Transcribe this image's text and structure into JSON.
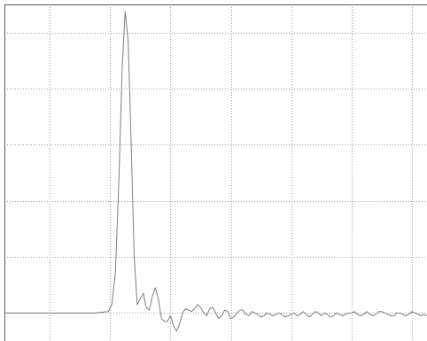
{
  "chart_data": {
    "type": "line",
    "title": "",
    "xlabel": "",
    "ylabel": "",
    "grid": true,
    "xlim": [
      0,
      7
    ],
    "ylim": [
      -0.1,
      1.1
    ],
    "x_gridlines": [
      0.75,
      1.75,
      2.75,
      3.75,
      4.75,
      5.75,
      6.75
    ],
    "y_gridlines": [
      0.0,
      0.2,
      0.4,
      0.6,
      0.8,
      1.0
    ],
    "series": [
      {
        "line_color": "#7f7f7f",
        "x": [
          0,
          0.5,
          1.0,
          1.5,
          1.72,
          1.78,
          1.84,
          1.9,
          1.95,
          2.0,
          2.05,
          2.1,
          2.15,
          2.2,
          2.25,
          2.3,
          2.35,
          2.4,
          2.45,
          2.5,
          2.55,
          2.6,
          2.65,
          2.7,
          2.75,
          2.8,
          2.85,
          2.9,
          2.95,
          3.0,
          3.05,
          3.1,
          3.15,
          3.2,
          3.25,
          3.3,
          3.35,
          3.4,
          3.45,
          3.5,
          3.55,
          3.6,
          3.65,
          3.7,
          3.75,
          3.8,
          3.85,
          3.9,
          3.95,
          4.0,
          4.05,
          4.1,
          4.15,
          4.2,
          4.25,
          4.3,
          4.35,
          4.4,
          4.45,
          4.5,
          4.55,
          4.6,
          4.65,
          4.7,
          4.75,
          4.8,
          4.85,
          4.9,
          4.95,
          5.0,
          5.05,
          5.1,
          5.15,
          5.2,
          5.25,
          5.3,
          5.35,
          5.4,
          5.45,
          5.5,
          5.55,
          5.6,
          5.65,
          5.7,
          5.75,
          5.8,
          5.85,
          5.9,
          5.95,
          6.0,
          6.05,
          6.1,
          6.15,
          6.2,
          6.25,
          6.3,
          6.35,
          6.4,
          6.45,
          6.5,
          6.55,
          6.6,
          6.65,
          6.7,
          6.75,
          6.8,
          6.85,
          6.9,
          6.95,
          7.0
        ],
        "y": [
          0.0,
          0.0,
          0.0,
          0.0,
          0.005,
          0.03,
          0.15,
          0.5,
          0.87,
          1.075,
          0.97,
          0.6,
          0.2,
          0.03,
          0.05,
          0.07,
          0.02,
          0.01,
          0.06,
          0.09,
          0.05,
          -0.02,
          -0.03,
          -0.03,
          -0.01,
          -0.045,
          -0.065,
          -0.04,
          0.0,
          0.015,
          0.01,
          0.005,
          0.015,
          0.03,
          0.02,
          0.0,
          -0.01,
          0.015,
          0.02,
          0.0,
          -0.02,
          -0.01,
          0.01,
          0.005,
          -0.02,
          -0.015,
          0.0,
          0.01,
          0.01,
          -0.005,
          -0.01,
          0.005,
          0.0,
          -0.005,
          -0.015,
          -0.01,
          0.0,
          -0.005,
          -0.01,
          -0.005,
          0.0,
          -0.005,
          -0.015,
          -0.01,
          -0.005,
          0.0,
          -0.01,
          -0.005,
          0.005,
          -0.005,
          -0.015,
          -0.005,
          0.005,
          0.0,
          -0.01,
          0.0,
          -0.005,
          -0.015,
          -0.01,
          0.0,
          -0.005,
          -0.01,
          -0.005,
          0.0,
          0.0,
          0.005,
          -0.005,
          -0.01,
          -0.005,
          0.005,
          -0.005,
          -0.01,
          -0.005,
          0.005,
          0.005,
          0.0,
          -0.005,
          -0.01,
          -0.01,
          0.0,
          0.0,
          -0.005,
          -0.01,
          -0.005,
          0.005,
          0.0,
          -0.005,
          -0.01,
          -0.005,
          -0.01
        ]
      }
    ]
  }
}
